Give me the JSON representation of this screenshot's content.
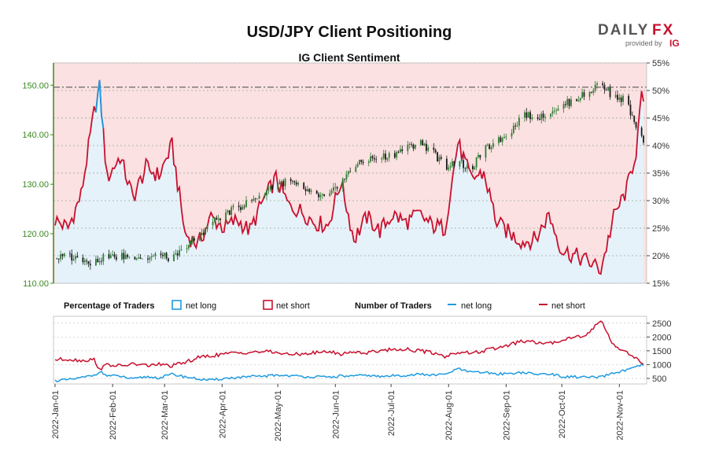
{
  "header": {
    "title": "USD/JPY Client Positioning",
    "subtitle": "IG Client Sentiment",
    "logo_text_1": "DAILY",
    "logo_text_2": "FX",
    "logo_provided_by": "provided by",
    "logo_ig": "IG"
  },
  "legend": {
    "percentage_heading": "Percentage of Traders",
    "pct_net_long": "net long",
    "pct_net_short": "net short",
    "number_heading": "Number of Traders",
    "num_net_long": "net long",
    "num_net_short": "net short"
  },
  "colors": {
    "net_long": "#1f9ae0",
    "net_short": "#c8102e",
    "long_fill": "#e6f2fa",
    "short_fill": "#fbe1e1",
    "price_axis": "#3a8a1f",
    "candle_up": "#2e7d32",
    "candle_down": "#1b1b1b"
  },
  "chart_data": [
    {
      "type": "line",
      "name": "upper-panel",
      "price_axis": {
        "ticks": [
          110,
          120,
          130,
          140,
          150
        ],
        "tick_labels": [
          "110.00",
          "120.00",
          "130.00",
          "140.00",
          "150.00"
        ],
        "ylim": [
          110,
          154.5
        ],
        "reference_line": 149.6
      },
      "pct_axis": {
        "ticks": [
          15,
          20,
          25,
          30,
          35,
          40,
          45,
          50,
          55
        ],
        "tick_labels": [
          "15%",
          "20%",
          "25%",
          "30%",
          "35%",
          "40%",
          "45%",
          "50%",
          "55%"
        ],
        "ylim": [
          15,
          55
        ]
      },
      "x_dates": [
        "2022-01-01",
        "2022-01-08",
        "2022-01-15",
        "2022-01-22",
        "2022-01-25",
        "2022-01-29",
        "2022-02-05",
        "2022-02-12",
        "2022-02-19",
        "2022-02-26",
        "2022-03-05",
        "2022-03-12",
        "2022-03-19",
        "2022-03-26",
        "2022-04-02",
        "2022-04-09",
        "2022-04-16",
        "2022-04-23",
        "2022-04-30",
        "2022-05-07",
        "2022-05-14",
        "2022-05-21",
        "2022-05-28",
        "2022-06-04",
        "2022-06-11",
        "2022-06-18",
        "2022-06-25",
        "2022-07-02",
        "2022-07-09",
        "2022-07-16",
        "2022-07-23",
        "2022-07-30",
        "2022-08-06",
        "2022-08-13",
        "2022-08-20",
        "2022-08-27",
        "2022-09-03",
        "2022-09-10",
        "2022-09-17",
        "2022-09-24",
        "2022-10-01",
        "2022-10-08",
        "2022-10-15",
        "2022-10-22",
        "2022-10-29",
        "2022-11-05",
        "2022-11-10",
        "2022-11-13"
      ],
      "series": [
        {
          "name": "net long",
          "values": [
            26.5,
            25.0,
            31.0,
            46.0,
            50.5,
            34.0,
            38.0,
            30.5,
            36.0,
            34.5,
            40.0,
            24.0,
            22.0,
            27.0,
            25.0,
            26.5,
            24.5,
            30.0,
            34.0,
            29.0,
            28.0,
            26.0,
            25.5,
            33.5,
            23.0,
            27.0,
            24.5,
            27.5,
            26.0,
            27.5,
            25.5,
            25.0,
            40.5,
            34.0,
            35.0,
            26.0,
            24.0,
            22.5,
            23.0,
            27.5,
            21.0,
            20.0,
            19.0,
            17.5,
            27.0,
            32.0,
            39.0,
            48.5
          ]
        },
        {
          "name": "USD/JPY",
          "values": [
            115.0,
            115.5,
            114.8,
            114.2,
            115.0,
            115.2,
            115.4,
            115.6,
            115.0,
            115.6,
            115.0,
            117.0,
            119.5,
            122.0,
            124.0,
            125.2,
            126.5,
            128.2,
            130.2,
            130.5,
            129.2,
            127.8,
            127.3,
            130.3,
            133.5,
            135.0,
            135.4,
            136.0,
            137.2,
            138.5,
            136.8,
            133.5,
            134.5,
            133.0,
            137.0,
            138.5,
            140.5,
            144.0,
            143.5,
            144.5,
            146.0,
            147.0,
            148.5,
            150.5,
            147.5,
            147.0,
            141.0,
            139.0
          ]
        }
      ]
    },
    {
      "type": "line",
      "name": "lower-panel",
      "y_axis": {
        "ticks": [
          500,
          1000,
          1500,
          2000,
          2500
        ],
        "tick_labels": [
          "500",
          "1000",
          "1500",
          "2000",
          "2500"
        ],
        "ylim": [
          300,
          2750
        ]
      },
      "x_dates": [
        "2022-01-01",
        "2022-01-08",
        "2022-01-15",
        "2022-01-22",
        "2022-01-25",
        "2022-01-29",
        "2022-02-05",
        "2022-02-12",
        "2022-02-19",
        "2022-02-26",
        "2022-03-05",
        "2022-03-12",
        "2022-03-19",
        "2022-03-26",
        "2022-04-02",
        "2022-04-09",
        "2022-04-16",
        "2022-04-23",
        "2022-04-30",
        "2022-05-07",
        "2022-05-14",
        "2022-05-21",
        "2022-05-28",
        "2022-06-04",
        "2022-06-11",
        "2022-06-18",
        "2022-06-25",
        "2022-07-02",
        "2022-07-09",
        "2022-07-16",
        "2022-07-23",
        "2022-07-30",
        "2022-08-06",
        "2022-08-13",
        "2022-08-20",
        "2022-08-27",
        "2022-09-03",
        "2022-09-10",
        "2022-09-17",
        "2022-09-24",
        "2022-10-01",
        "2022-10-08",
        "2022-10-15",
        "2022-10-22",
        "2022-10-29",
        "2022-11-05",
        "2022-11-10",
        "2022-11-13"
      ],
      "series": [
        {
          "name": "net long",
          "values": [
            420,
            450,
            520,
            620,
            750,
            600,
            580,
            470,
            560,
            520,
            650,
            560,
            480,
            430,
            500,
            530,
            560,
            580,
            620,
            600,
            570,
            560,
            540,
            590,
            580,
            620,
            560,
            600,
            610,
            650,
            620,
            640,
            850,
            720,
            720,
            660,
            680,
            720,
            640,
            680,
            560,
            560,
            540,
            540,
            700,
            800,
            900,
            980
          ]
        },
        {
          "name": "net short",
          "values": [
            1180,
            1200,
            1150,
            1180,
            830,
            1000,
            950,
            1020,
            970,
            1010,
            950,
            1080,
            1250,
            1320,
            1380,
            1430,
            1450,
            1470,
            1450,
            1350,
            1400,
            1420,
            1480,
            1380,
            1470,
            1420,
            1520,
            1550,
            1560,
            1500,
            1440,
            1300,
            1450,
            1420,
            1500,
            1600,
            1720,
            1850,
            1800,
            1750,
            1900,
            2000,
            2100,
            2620,
            1700,
            1450,
            1250,
            1020
          ]
        }
      ]
    }
  ],
  "x_axis": {
    "tick_dates": [
      "2022-01-01",
      "2022-02-01",
      "2022-03-01",
      "2022-04-01",
      "2022-05-01",
      "2022-06-01",
      "2022-07-01",
      "2022-08-01",
      "2022-09-01",
      "2022-10-01",
      "2022-11-01"
    ],
    "tick_labels": [
      "2022-Jan-01",
      "2022-Feb-01",
      "2022-Mar-01",
      "2022-Apr-01",
      "2022-May-01",
      "2022-Jun-01",
      "2022-Jul-01",
      "2022-Aug-01",
      "2022-Sep-01",
      "2022-Oct-01",
      "2022-Nov-01"
    ]
  }
}
